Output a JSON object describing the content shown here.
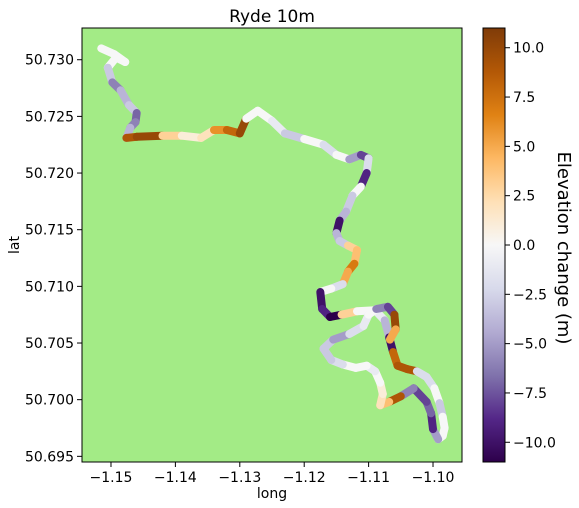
{
  "chart_data": {
    "type": "scatter",
    "title": "Ryde 10m",
    "xlabel": "long",
    "ylabel": "lat",
    "xlim": [
      -1.1545,
      -1.0955
    ],
    "ylim": [
      50.6945,
      50.7328
    ],
    "xticks": [
      -1.15,
      -1.14,
      -1.13,
      -1.12,
      -1.11,
      -1.1
    ],
    "xtick_labels": [
      "−1.15",
      "−1.14",
      "−1.13",
      "−1.12",
      "−1.11",
      "−1.10"
    ],
    "yticks": [
      50.695,
      50.7,
      50.705,
      50.71,
      50.715,
      50.72,
      50.725,
      50.73
    ],
    "ytick_labels": [
      "50.695",
      "50.700",
      "50.705",
      "50.710",
      "50.715",
      "50.720",
      "50.725",
      "50.730"
    ],
    "background_color": "#a3eb86",
    "colorbar": {
      "label": "Elevation change (m)",
      "range": [
        -11,
        11
      ],
      "colormap": "PuOr_r",
      "ticks": [
        10.0,
        7.5,
        5.0,
        2.5,
        0.0,
        -2.5,
        -5.0,
        -7.5,
        -10.0
      ],
      "tick_labels": [
        "10.0",
        "7.5",
        "5.0",
        "2.5",
        "0.0",
        "−2.5",
        "−5.0",
        "−7.5",
        "−10.0"
      ],
      "colors": [
        "#2d004b",
        "#542788",
        "#8073ac",
        "#b2abd2",
        "#d8daeb",
        "#f7f7f7",
        "#fee0b6",
        "#fdb863",
        "#e08214",
        "#b35806",
        "#7f3b08"
      ]
    },
    "route": {
      "points": [
        [
          -1.1515,
          50.731
        ],
        [
          -1.1495,
          50.7305
        ],
        [
          -1.1478,
          50.7298
        ],
        [
          -1.1492,
          50.7302
        ],
        [
          -1.1505,
          50.7293
        ],
        [
          -1.1498,
          50.728
        ],
        [
          -1.1485,
          50.7273
        ],
        [
          -1.1472,
          50.726
        ],
        [
          -1.146,
          50.7253
        ],
        [
          -1.1462,
          50.7245
        ],
        [
          -1.147,
          50.724
        ],
        [
          -1.1476,
          50.7231
        ],
        [
          -1.146,
          50.7232
        ],
        [
          -1.142,
          50.7233
        ],
        [
          -1.139,
          50.7233
        ],
        [
          -1.136,
          50.7231
        ],
        [
          -1.134,
          50.7238
        ],
        [
          -1.132,
          50.7238
        ],
        [
          -1.13,
          50.7235
        ],
        [
          -1.129,
          50.7248
        ],
        [
          -1.1272,
          50.7255
        ],
        [
          -1.125,
          50.7246
        ],
        [
          -1.123,
          50.7235
        ],
        [
          -1.12,
          50.723
        ],
        [
          -1.117,
          50.7225
        ],
        [
          -1.115,
          50.7216
        ],
        [
          -1.113,
          50.7212
        ],
        [
          -1.1112,
          50.7216
        ],
        [
          -1.11,
          50.7213
        ],
        [
          -1.1103,
          50.72
        ],
        [
          -1.1112,
          50.7188
        ],
        [
          -1.1125,
          50.718
        ],
        [
          -1.1135,
          50.7166
        ],
        [
          -1.1145,
          50.7158
        ],
        [
          -1.115,
          50.7147
        ],
        [
          -1.1145,
          50.714
        ],
        [
          -1.1132,
          50.7136
        ],
        [
          -1.1118,
          50.7132
        ],
        [
          -1.1122,
          50.712
        ],
        [
          -1.1132,
          50.7113
        ],
        [
          -1.114,
          50.7102
        ],
        [
          -1.1158,
          50.7098
        ],
        [
          -1.1175,
          50.7095
        ],
        [
          -1.1172,
          50.708
        ],
        [
          -1.116,
          50.7073
        ],
        [
          -1.1142,
          50.7075
        ],
        [
          -1.1118,
          50.7078
        ],
        [
          -1.109,
          50.7079
        ],
        [
          -1.1075,
          50.707
        ],
        [
          -1.1068,
          50.7055
        ],
        [
          -1.1062,
          50.7042
        ],
        [
          -1.1055,
          50.703
        ],
        [
          -1.104,
          50.7027
        ],
        [
          -1.1025,
          50.7025
        ],
        [
          -1.101,
          50.702
        ],
        [
          -1.0998,
          50.701
        ],
        [
          -1.099,
          50.6997
        ],
        [
          -1.0985,
          50.6985
        ],
        [
          -1.0982,
          50.6975
        ],
        [
          -1.0985,
          50.6968
        ],
        [
          -1.0992,
          50.6965
        ],
        [
          -1.1,
          50.6974
        ],
        [
          -1.1003,
          50.6988
        ],
        [
          -1.101,
          50.6998
        ],
        [
          -1.103,
          50.701
        ],
        [
          -1.105,
          50.7003
        ],
        [
          -1.1068,
          50.6998
        ],
        [
          -1.1082,
          50.6995
        ],
        [
          -1.1078,
          50.7005
        ],
        [
          -1.1082,
          50.7015
        ],
        [
          -1.109,
          50.7025
        ],
        [
          -1.1103,
          50.703
        ],
        [
          -1.112,
          50.7028
        ],
        [
          -1.114,
          50.7031
        ],
        [
          -1.1158,
          50.7035
        ],
        [
          -1.117,
          50.7045
        ],
        [
          -1.1155,
          50.7053
        ],
        [
          -1.113,
          50.7058
        ],
        [
          -1.1108,
          50.7065
        ],
        [
          -1.11,
          50.7075
        ],
        [
          -1.1088,
          50.708
        ],
        [
          -1.107,
          50.7082
        ],
        [
          -1.106,
          50.7075
        ],
        [
          -1.1058,
          50.7062
        ],
        [
          -1.1067,
          50.7053
        ]
      ],
      "segment_values": [
        0,
        0,
        0,
        0,
        -3,
        -6,
        -4,
        -3,
        -7,
        -6,
        -4,
        9,
        10,
        3,
        1,
        2,
        6,
        8,
        10,
        0,
        0,
        -1,
        -3,
        0,
        -2,
        0,
        -5,
        -8,
        -2,
        -9,
        0,
        -3,
        -4,
        -10,
        -4,
        -3,
        3,
        4,
        7,
        5,
        -2,
        0,
        -10,
        -9,
        -11,
        3,
        0,
        -1,
        -4,
        -10,
        8,
        9,
        9,
        -2,
        -2,
        0,
        -3,
        0,
        0,
        0,
        -5,
        -9,
        -7,
        -8,
        -6,
        9,
        4,
        2,
        1,
        0,
        -1,
        0,
        0,
        -2,
        -3,
        -3,
        -5,
        -2,
        -1,
        0,
        -6,
        -8,
        10,
        5
      ]
    }
  }
}
